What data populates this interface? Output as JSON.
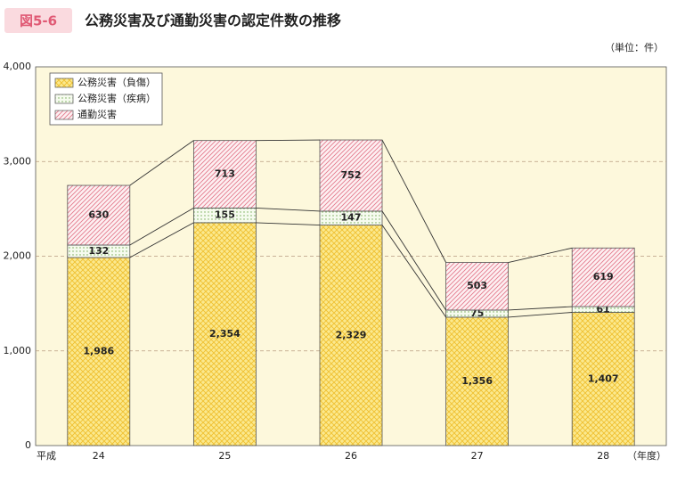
{
  "chart_data": {
    "type": "stacked_bar",
    "figure_label": "図5-6",
    "title": "公務災害及び通勤災害の認定件数の推移",
    "unit": "（単位：件）",
    "x_prefix": "平成",
    "x_suffix": "（年度）",
    "categories": [
      "24",
      "25",
      "26",
      "27",
      "28"
    ],
    "series": [
      {
        "name": "公務災害（負傷）",
        "color": "#f7dc5c",
        "values": [
          1986,
          2354,
          2329,
          1356,
          1407
        ],
        "value_labels": [
          "1,986",
          "2,354",
          "2,329",
          "1,356",
          "1,407"
        ]
      },
      {
        "name": "公務災害（疾病）",
        "color": "#8fc070",
        "values": [
          132,
          155,
          147,
          75,
          61
        ]
      },
      {
        "name": "通勤災害",
        "color": "#e87a8c",
        "values": [
          630,
          713,
          752,
          503,
          619
        ]
      }
    ],
    "ylim": [
      0,
      4000
    ],
    "yticks": [
      0,
      {
        "value": 1000,
        "label": "1,000"
      },
      {
        "value": 2000,
        "label": "2,000"
      },
      {
        "value": 3000,
        "label": "3,000"
      },
      {
        "value": 4000,
        "label": "4,000"
      }
    ],
    "grid": true,
    "legend": "top-left"
  }
}
